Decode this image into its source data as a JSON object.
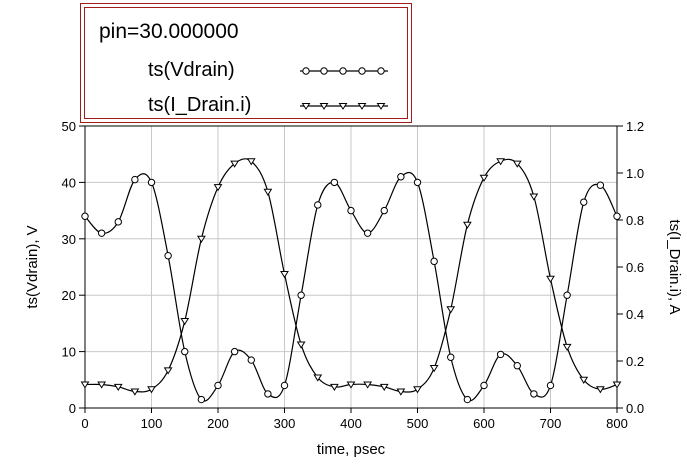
{
  "chart_data": {
    "type": "line",
    "xlabel": "time, psec",
    "ylabel": "ts(Vdrain), V",
    "y2label": "ts(I_Drain.i), A",
    "xlim": [
      0,
      800
    ],
    "ylim": [
      0,
      50
    ],
    "y2lim": [
      0,
      1.2
    ],
    "x_ticks": [
      0,
      100,
      200,
      300,
      400,
      500,
      600,
      700,
      800
    ],
    "y_ticks": [
      0,
      10,
      20,
      30,
      40,
      50
    ],
    "y2_ticks": [
      "0.0",
      "0.2",
      "0.4",
      "0.6",
      "0.8",
      "1.0",
      "1.2"
    ],
    "grid": true,
    "legend": {
      "title": "pin=30.000000",
      "placement": "top-left",
      "entries": [
        {
          "label": "ts(Vdrain)",
          "marker": "circle"
        },
        {
          "label": "ts(I_Drain.i)",
          "marker": "triangle-down"
        }
      ]
    },
    "x": [
      0,
      25,
      50,
      75,
      100,
      125,
      150,
      175,
      200,
      225,
      250,
      275,
      300,
      325,
      350,
      375,
      400,
      425,
      450,
      475,
      500,
      525,
      550,
      575,
      600,
      625,
      650,
      675,
      700,
      725,
      750,
      775,
      800
    ],
    "series": [
      {
        "name": "ts(Vdrain)",
        "axis": "left",
        "marker": "circle",
        "values": [
          34,
          31,
          33,
          40.5,
          40,
          27,
          10,
          1.5,
          4,
          10,
          8.5,
          2.5,
          4,
          20,
          36,
          40,
          35,
          31,
          35,
          41,
          40,
          26,
          9,
          1.5,
          4,
          9.5,
          7.5,
          2.5,
          4,
          20,
          36.5,
          39.5,
          34
        ]
      },
      {
        "name": "ts(I_Drain.i)",
        "axis": "right",
        "marker": "triangle-down",
        "values": [
          0.1,
          0.1,
          0.09,
          0.07,
          0.08,
          0.16,
          0.37,
          0.72,
          0.94,
          1.04,
          1.05,
          0.92,
          0.57,
          0.27,
          0.13,
          0.09,
          0.1,
          0.1,
          0.09,
          0.07,
          0.08,
          0.17,
          0.42,
          0.78,
          0.98,
          1.05,
          1.04,
          0.9,
          0.55,
          0.26,
          0.12,
          0.08,
          0.1
        ]
      }
    ]
  }
}
